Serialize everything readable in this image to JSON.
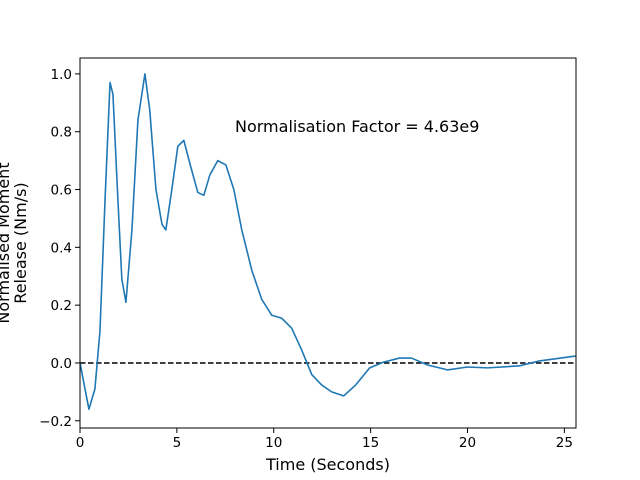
{
  "chart_data": {
    "type": "line",
    "xlabel": "Time (Seconds)",
    "ylabel": [
      "Normalised Moment",
      "Release (Nm/s)"
    ],
    "annotation": "Normalisation Factor = 4.63e9",
    "x": [
      0,
      0.46,
      0.77,
      1.03,
      1.29,
      1.55,
      1.7,
      1.96,
      2.16,
      2.37,
      2.68,
      2.99,
      3.35,
      3.6,
      3.92,
      4.23,
      4.43,
      4.74,
      5.05,
      5.36,
      5.67,
      6.08,
      6.39,
      6.7,
      7.11,
      7.53,
      7.94,
      8.35,
      8.87,
      9.38,
      9.9,
      10.41,
      10.93,
      11.44,
      11.96,
      12.47,
      12.99,
      13.61,
      14.23,
      14.95,
      15.67,
      16.49,
      17.11,
      17.94,
      18.97,
      20,
      21.03,
      22.68,
      23.71,
      25.57
    ],
    "values": [
      0,
      -0.16,
      -0.09,
      0.11,
      0.56,
      0.97,
      0.93,
      0.56,
      0.29,
      0.21,
      0.46,
      0.84,
      1.0,
      0.875,
      0.6,
      0.48,
      0.46,
      0.6,
      0.75,
      0.77,
      0.69,
      0.59,
      0.58,
      0.65,
      0.7,
      0.685,
      0.6,
      0.46,
      0.32,
      0.22,
      0.165,
      0.155,
      0.12,
      0.045,
      -0.04,
      -0.076,
      -0.1,
      -0.114,
      -0.076,
      -0.017,
      0.003,
      0.017,
      0.017,
      -0.007,
      -0.024,
      -0.014,
      -0.017,
      -0.01,
      0.007,
      0.024
    ],
    "color": "#1f77b4",
    "hline": 0,
    "hline_color": "#000000",
    "xlim": [
      0,
      25.6
    ],
    "ylim": [
      -0.225,
      1.055
    ],
    "xticks": [
      0,
      5,
      10,
      15,
      20,
      25
    ],
    "yticks": [
      {
        "value": -0.2,
        "label": "−0.2"
      },
      {
        "value": 0,
        "label": "0.0"
      },
      {
        "value": 0.2,
        "label": "0.2"
      },
      {
        "value": 0.4,
        "label": "0.4"
      },
      {
        "value": 0.6,
        "label": "0.6"
      },
      {
        "value": 0.8,
        "label": "0.8"
      },
      {
        "value": 1.0,
        "label": "1.0"
      }
    ],
    "grid": false
  }
}
